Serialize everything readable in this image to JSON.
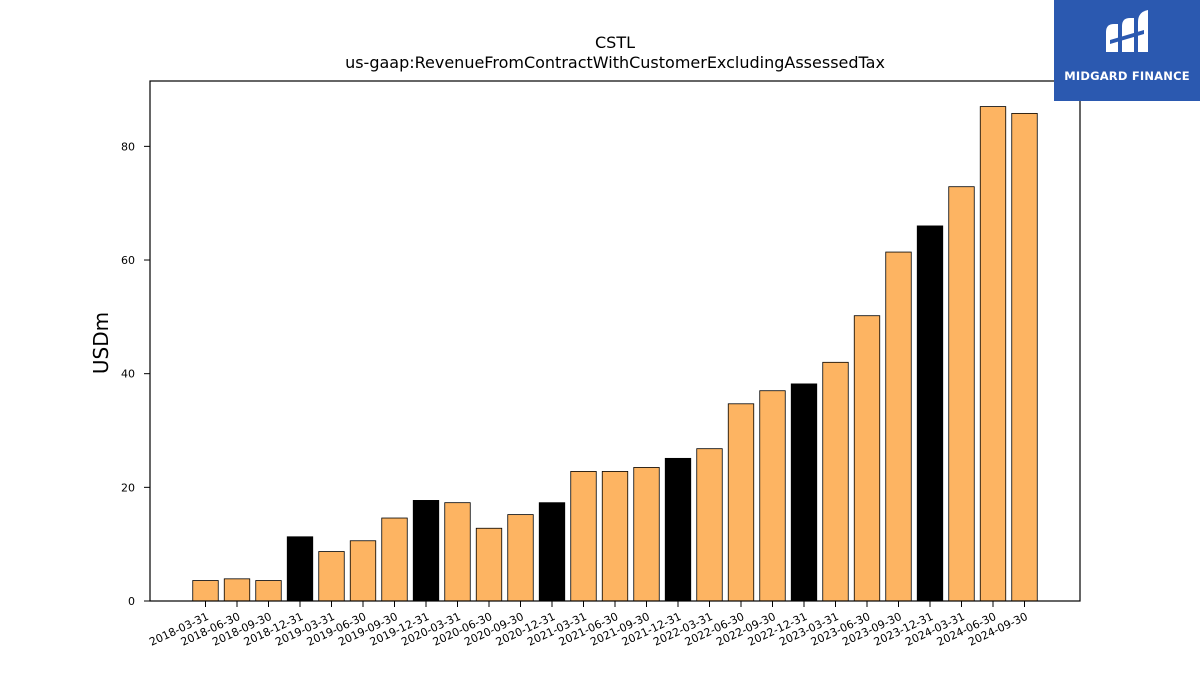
{
  "logo": {
    "text": "MIDGARD FINANCE",
    "background": "#2b59b0"
  },
  "chart_data": {
    "type": "bar",
    "title": "CSTL",
    "subtitle": "us-gaap:RevenueFromContractWithCustomerExcludingAssessedTax",
    "xlabel": "",
    "ylabel": "USDm",
    "ylim": [
      0,
      91.5
    ],
    "yticks": [
      0,
      20,
      40,
      60,
      80
    ],
    "grid": false,
    "colors": {
      "quarter": "#fdb462",
      "year_end": "#000000",
      "edge": "#000000"
    },
    "categories": [
      "2018-03-31",
      "2018-06-30",
      "2018-09-30",
      "2018-12-31",
      "2019-03-31",
      "2019-06-30",
      "2019-09-30",
      "2019-12-31",
      "2020-03-31",
      "2020-06-30",
      "2020-09-30",
      "2020-12-31",
      "2021-03-31",
      "2021-06-30",
      "2021-09-30",
      "2021-12-31",
      "2022-03-31",
      "2022-06-30",
      "2022-09-30",
      "2022-12-31",
      "2023-03-31",
      "2023-06-30",
      "2023-09-30",
      "2023-12-31",
      "2024-03-31",
      "2024-06-30",
      "2024-09-30"
    ],
    "values": [
      3.6,
      3.9,
      3.6,
      11.3,
      8.7,
      10.6,
      14.6,
      17.7,
      17.3,
      12.8,
      15.2,
      17.3,
      22.8,
      22.8,
      23.5,
      25.1,
      26.8,
      34.7,
      37.0,
      38.2,
      42.0,
      50.2,
      61.4,
      66.0,
      72.9,
      87.0,
      85.8
    ]
  }
}
